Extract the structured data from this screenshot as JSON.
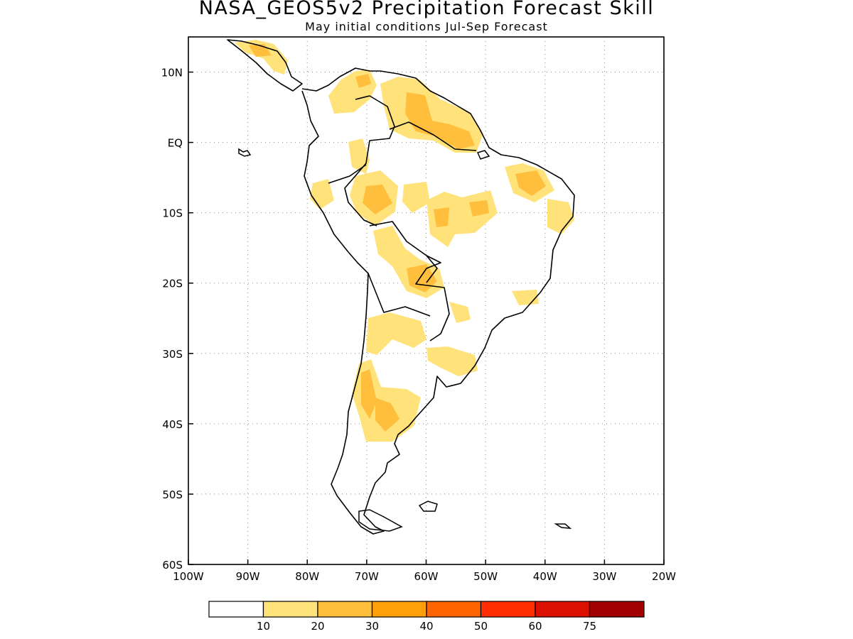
{
  "title": "NASA_GEOS5v2 Precipitation Forecast Skill",
  "subtitle": "May initial conditions  Jul-Sep Forecast",
  "map": {
    "region": "South America",
    "lon_range": [
      -100,
      -20
    ],
    "lat_range": [
      -60,
      15
    ],
    "grid": "dotted",
    "lat_labels": [
      "10N",
      "EQ",
      "10S",
      "20S",
      "30S",
      "40S",
      "50S",
      "60S"
    ],
    "lon_labels": [
      "100W",
      "90W",
      "80W",
      "70W",
      "60W",
      "50W",
      "40W",
      "30W",
      "20W"
    ]
  },
  "colorbar": {
    "labels": [
      "10",
      "20",
      "30",
      "40",
      "50",
      "60",
      "75"
    ],
    "colors": [
      "#ffffff",
      "#ffe27a",
      "#ffbe3c",
      "#ffa00a",
      "#ff6400",
      "#ff2d00",
      "#dc0f00",
      "#a00000"
    ]
  }
}
